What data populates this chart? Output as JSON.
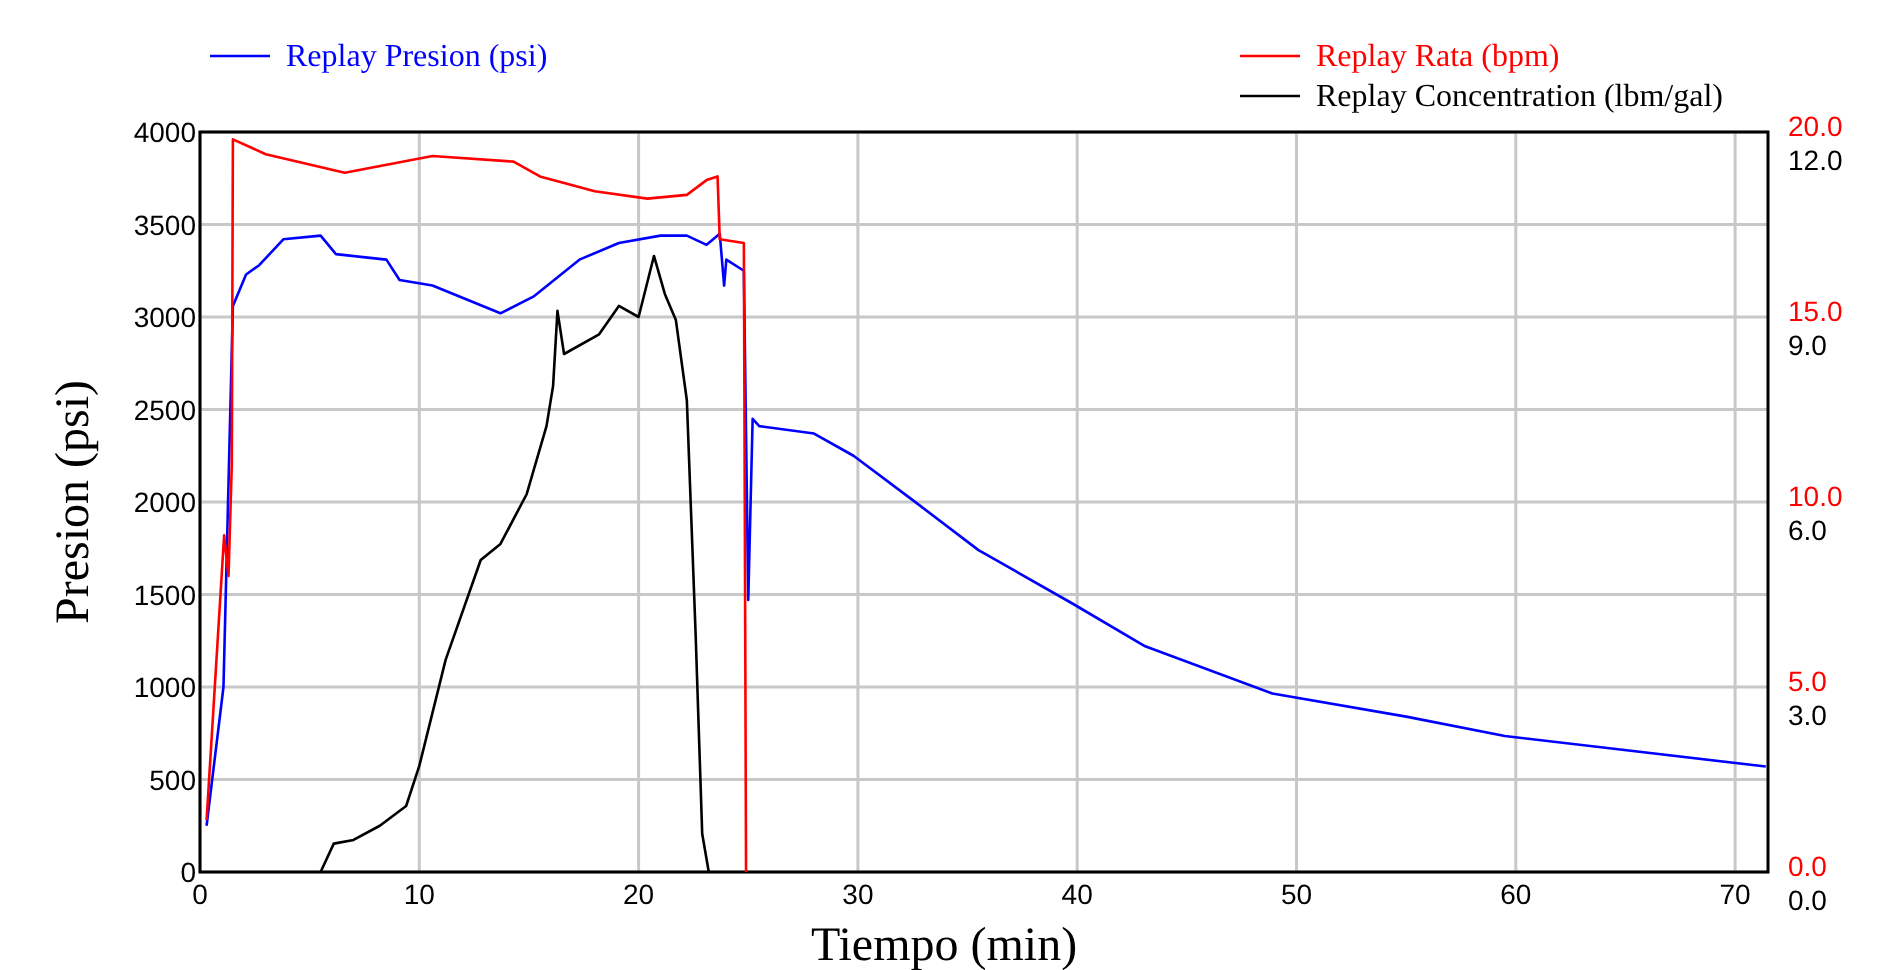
{
  "chart_data": {
    "type": "line",
    "xlabel": "Tiempo (min)",
    "ylabel": "Presion (psi)",
    "xlim": [
      0,
      71.5
    ],
    "xticks": [
      0,
      10,
      20,
      30,
      40,
      50,
      60,
      70
    ],
    "ylim": [
      0,
      4000
    ],
    "yticks": [
      0,
      500,
      1000,
      1500,
      2000,
      2500,
      3000,
      3500,
      4000
    ],
    "y2lim": [
      0,
      20
    ],
    "y2ticks": [
      {
        "value": 0,
        "label": "0.0"
      },
      {
        "value": 5,
        "label": "5.0"
      },
      {
        "value": 10,
        "label": "10.0"
      },
      {
        "value": 15,
        "label": "15.0"
      },
      {
        "value": 20,
        "label": "20.0"
      }
    ],
    "y3lim": [
      0,
      12
    ],
    "y3ticks": [
      {
        "value": 0,
        "label": "0.0"
      },
      {
        "value": 3,
        "label": "3.0"
      },
      {
        "value": 6,
        "label": "6.0"
      },
      {
        "value": 9,
        "label": "9.0"
      },
      {
        "value": 12,
        "label": "12.0"
      }
    ],
    "grid": true,
    "legend": "top",
    "line_style": "solid",
    "series": [
      {
        "name": "Replay Presion (psi)",
        "color": "#0000ff",
        "x": [
          0.3,
          1.07,
          1.5,
          2.1,
          2.7,
          3.8,
          5.5,
          6.2,
          8.5,
          9.1,
          10.6,
          13.7,
          15.2,
          17.3,
          19.1,
          21,
          22.2,
          23.1,
          23.7,
          23.9,
          24,
          24.8,
          25,
          25.2,
          25.5,
          28,
          29.8,
          32.5,
          35.5,
          39.8,
          43.1,
          48.9,
          55,
          59.5,
          71.4
        ],
        "values": [
          250,
          1000,
          3060,
          3230,
          3280,
          3420,
          3440,
          3340,
          3310,
          3200,
          3170,
          3020,
          3110,
          3310,
          3400,
          3440,
          3440,
          3390,
          3450,
          3170,
          3310,
          3250,
          1470,
          2450,
          2410,
          2370,
          2250,
          2010,
          1740,
          1450,
          1220,
          965,
          840,
          735,
          570
        ]
      },
      {
        "name": "Replay Rata (bpm)",
        "color": "#ff0000",
        "axis": "y2",
        "x": [
          0.3,
          1.1,
          1.3,
          1.45,
          1.5,
          3,
          6.6,
          10.6,
          14.3,
          15.5,
          18,
          20.4,
          22.2,
          23.1,
          23.6,
          23.7,
          24.8,
          24.9
        ],
        "values": [
          1.4,
          9.1,
          8,
          11,
          19.8,
          19.4,
          18.9,
          19.35,
          19.2,
          18.8,
          18.4,
          18.2,
          18.3,
          18.7,
          18.8,
          17.1,
          17,
          0
        ]
      },
      {
        "name": "Replay Concentration (lbm/gal)",
        "color": "#000000",
        "axis": "y3",
        "x": [
          5.5,
          6.1,
          7,
          8.2,
          9.4,
          10,
          11.2,
          12.8,
          13.7,
          14.9,
          15.8,
          16.1,
          16.3,
          16.6,
          18.2,
          19.1,
          20,
          20.7,
          21.2,
          21.7,
          22.2,
          22.6,
          22.9,
          23.2
        ],
        "values": [
          0,
          0.46,
          0.52,
          0.75,
          1.07,
          1.72,
          3.44,
          5.06,
          5.32,
          6.13,
          7.23,
          7.88,
          9.1,
          8.4,
          8.72,
          9.18,
          9.0,
          9.99,
          9.37,
          8.95,
          7.65,
          3.86,
          0.62,
          0
        ]
      }
    ]
  }
}
